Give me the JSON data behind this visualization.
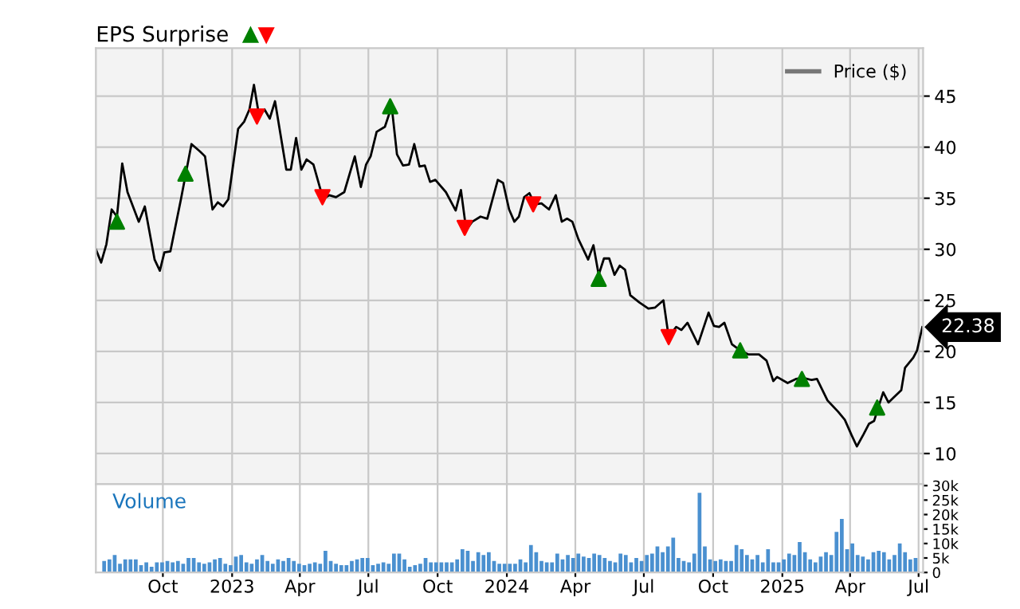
{
  "chart_data": [
    {
      "type": "line",
      "title": "EPS Surprise",
      "legend": "top right",
      "grid": true,
      "tick_labels": "y",
      "xlim": [
        "2022-07-04",
        "2025-07-07"
      ],
      "xticks": [
        {
          "value": "2022-10-01",
          "label": null
        },
        {
          "value": "2023-01-01",
          "label": null
        },
        {
          "value": "2023-04-01",
          "label": null
        },
        {
          "value": "2023-07-01",
          "label": null
        },
        {
          "value": "2023-10-01",
          "label": null
        },
        {
          "value": "2024-01-01",
          "label": null
        },
        {
          "value": "2024-04-01",
          "label": null
        },
        {
          "value": "2024-07-01",
          "label": null
        },
        {
          "value": "2024-10-01",
          "label": null
        },
        {
          "value": "2025-01-01",
          "label": null
        },
        {
          "value": "2025-04-01",
          "label": null
        },
        {
          "value": "2025-07-01",
          "label": null
        }
      ],
      "ylim": [
        7,
        49.7
      ],
      "yticks": [
        10,
        15,
        20,
        25,
        30,
        35,
        40,
        45
      ],
      "annotations": [
        {
          "text": "22.38",
          "x": "2025-07-06",
          "y": 22.38
        }
      ],
      "series": [
        {
          "name": "Price ($)",
          "type": "line",
          "color": "#000000",
          "marker": "none",
          "x": [
            "2022-07-04",
            "2022-07-11",
            "2022-07-18",
            "2022-07-25",
            "2022-08-01",
            "2022-08-08",
            "2022-08-15",
            "2022-08-30",
            "2022-09-07",
            "2022-09-20",
            "2022-09-27",
            "2022-10-03",
            "2022-10-11",
            "2022-10-25",
            "2022-11-08",
            "2022-11-19",
            "2022-11-26",
            "2022-12-06",
            "2022-12-13",
            "2022-12-20",
            "2022-12-27",
            "2023-01-09",
            "2023-01-17",
            "2023-01-24",
            "2023-01-30",
            "2023-02-06",
            "2023-02-13",
            "2023-02-20",
            "2023-02-27",
            "2023-03-14",
            "2023-03-20",
            "2023-03-27",
            "2023-04-03",
            "2023-04-10",
            "2023-04-19",
            "2023-05-02",
            "2023-05-10",
            "2023-05-19",
            "2023-05-30",
            "2023-06-13",
            "2023-06-21",
            "2023-06-28",
            "2023-07-04",
            "2023-07-12",
            "2023-07-23",
            "2023-08-01",
            "2023-08-08",
            "2023-08-16",
            "2023-08-24",
            "2023-08-31",
            "2023-09-07",
            "2023-09-14",
            "2023-09-21",
            "2023-09-28",
            "2023-10-12",
            "2023-10-25",
            "2023-11-01",
            "2023-11-08",
            "2023-11-16",
            "2023-11-27",
            "2023-12-06",
            "2023-12-20",
            "2023-12-27",
            "2024-01-04",
            "2024-01-11",
            "2024-01-17",
            "2024-01-24",
            "2024-01-31",
            "2024-02-07",
            "2024-02-16",
            "2024-02-26",
            "2024-03-06",
            "2024-03-14",
            "2024-03-21",
            "2024-03-28",
            "2024-04-05",
            "2024-04-18",
            "2024-04-25",
            "2024-05-02",
            "2024-05-09",
            "2024-05-16",
            "2024-05-23",
            "2024-05-30",
            "2024-06-06",
            "2024-06-13",
            "2024-06-25",
            "2024-07-07",
            "2024-07-16",
            "2024-07-27",
            "2024-08-03",
            "2024-08-13",
            "2024-08-20",
            "2024-08-28",
            "2024-09-11",
            "2024-09-25",
            "2024-10-02",
            "2024-10-09",
            "2024-10-16",
            "2024-10-26",
            "2024-11-06",
            "2024-11-17",
            "2024-12-01",
            "2024-12-11",
            "2024-12-20",
            "2024-12-25",
            "2025-01-08",
            "2025-01-19",
            "2025-01-29",
            "2025-02-09",
            "2025-02-16",
            "2025-03-02",
            "2025-03-16",
            "2025-03-25",
            "2025-04-03",
            "2025-04-10",
            "2025-04-19",
            "2025-04-26",
            "2025-05-03",
            "2025-05-08",
            "2025-05-15",
            "2025-05-22",
            "2025-05-29",
            "2025-06-08",
            "2025-06-13",
            "2025-06-24",
            "2025-06-29",
            "2025-07-06"
          ],
          "values": [
            30.0,
            28.7,
            30.5,
            33.9,
            33.2,
            38.4,
            35.6,
            32.7,
            34.2,
            29.0,
            27.9,
            29.7,
            29.8,
            34.9,
            40.3,
            39.6,
            39.1,
            33.9,
            34.6,
            34.2,
            34.9,
            41.8,
            42.5,
            43.7,
            46.1,
            43.0,
            43.7,
            42.8,
            44.5,
            37.8,
            37.8,
            40.9,
            37.8,
            38.8,
            38.3,
            34.9,
            35.3,
            35.1,
            35.6,
            39.1,
            36.1,
            38.3,
            39.1,
            41.5,
            42.0,
            44.0,
            39.3,
            38.2,
            38.3,
            40.3,
            38.1,
            38.2,
            36.6,
            36.8,
            35.6,
            33.8,
            35.8,
            31.9,
            32.7,
            33.2,
            33.0,
            36.8,
            36.5,
            33.9,
            32.7,
            33.2,
            35.1,
            35.5,
            34.4,
            34.5,
            33.9,
            35.3,
            32.7,
            33.0,
            32.7,
            31.0,
            29.0,
            30.4,
            27.5,
            29.1,
            29.1,
            27.5,
            28.4,
            28.0,
            25.5,
            24.8,
            24.2,
            24.3,
            25.0,
            21.4,
            22.4,
            22.1,
            22.8,
            20.7,
            23.8,
            22.5,
            22.4,
            22.8,
            20.7,
            20.1,
            19.7,
            19.7,
            19.1,
            17.1,
            17.5,
            16.9,
            17.3,
            17.4,
            17.2,
            17.3,
            15.2,
            14.1,
            13.3,
            11.8,
            10.7,
            11.9,
            12.9,
            13.2,
            14.4,
            16.0,
            15.0,
            15.5,
            16.2,
            18.4,
            19.4,
            20.1,
            22.38
          ]
        },
        {
          "type": "scatter",
          "color": "#008000",
          "marker": "triangle",
          "x": [
            "2022-08-01",
            "2022-10-31",
            "2023-07-30",
            "2024-05-02",
            "2024-11-06",
            "2025-01-27",
            "2025-05-07"
          ],
          "values": [
            32.7,
            37.4,
            44.0,
            27.1,
            20.1,
            17.3,
            14.5
          ]
        },
        {
          "type": "scatter",
          "color": "#ff0000",
          "marker": "triangle-down",
          "x": [
            "2023-02-03",
            "2023-05-01",
            "2023-11-06",
            "2024-02-05",
            "2024-08-03"
          ],
          "values": [
            43.0,
            35.1,
            32.1,
            34.4,
            21.4
          ]
        }
      ]
    },
    {
      "type": "bar",
      "title": "Volume",
      "grid": "x",
      "color": "#4a90d0",
      "xlim": [
        "2022-07-04",
        "2025-07-07"
      ],
      "xticks": [
        {
          "value": "2022-10-01",
          "label": "Oct"
        },
        {
          "value": "2023-01-01",
          "label": "2023"
        },
        {
          "value": "2023-04-01",
          "label": "Apr"
        },
        {
          "value": "2023-07-01",
          "label": "Jul"
        },
        {
          "value": "2023-10-01",
          "label": "Oct"
        },
        {
          "value": "2024-01-01",
          "label": "2024"
        },
        {
          "value": "2024-04-01",
          "label": "Apr"
        },
        {
          "value": "2024-07-01",
          "label": "Jul"
        },
        {
          "value": "2024-10-01",
          "label": "Oct"
        },
        {
          "value": "2025-01-01",
          "label": "2025"
        },
        {
          "value": "2025-04-01",
          "label": "Apr"
        },
        {
          "value": "2025-07-01",
          "label": "Jul"
        }
      ],
      "ylim": [
        0,
        30.5
      ],
      "yticks": [
        0,
        {
          "value": 5,
          "label": "5k"
        },
        {
          "value": 10,
          "label": "10k"
        },
        {
          "value": 15,
          "label": "15k"
        },
        {
          "value": 20,
          "label": "20k"
        },
        {
          "value": 25,
          "label": "25k"
        },
        {
          "value": 30,
          "label": "30k"
        }
      ],
      "x": [
        "2022-07-15",
        "2022-07-22",
        "2022-07-29",
        "2022-08-05",
        "2022-08-12",
        "2022-08-19",
        "2022-08-26",
        "2022-09-02",
        "2022-09-09",
        "2022-09-16",
        "2022-09-23",
        "2022-09-30",
        "2022-10-07",
        "2022-10-14",
        "2022-10-21",
        "2022-10-28",
        "2022-11-04",
        "2022-11-11",
        "2022-11-18",
        "2022-11-25",
        "2022-12-02",
        "2022-12-09",
        "2022-12-16",
        "2022-12-23",
        "2022-12-30",
        "2023-01-06",
        "2023-01-13",
        "2023-01-20",
        "2023-01-27",
        "2023-02-03",
        "2023-02-10",
        "2023-02-17",
        "2023-02-24",
        "2023-03-03",
        "2023-03-10",
        "2023-03-17",
        "2023-03-24",
        "2023-03-31",
        "2023-04-07",
        "2023-04-14",
        "2023-04-21",
        "2023-04-28",
        "2023-05-05",
        "2023-05-12",
        "2023-05-19",
        "2023-05-26",
        "2023-06-02",
        "2023-06-09",
        "2023-06-16",
        "2023-06-23",
        "2023-06-30",
        "2023-07-07",
        "2023-07-14",
        "2023-07-21",
        "2023-07-28",
        "2023-08-04",
        "2023-08-11",
        "2023-08-18",
        "2023-08-25",
        "2023-09-01",
        "2023-09-08",
        "2023-09-15",
        "2023-09-22",
        "2023-09-29",
        "2023-10-06",
        "2023-10-13",
        "2023-10-20",
        "2023-10-27",
        "2023-11-03",
        "2023-11-10",
        "2023-11-17",
        "2023-11-24",
        "2023-12-01",
        "2023-12-08",
        "2023-12-15",
        "2023-12-22",
        "2023-12-29",
        "2024-01-05",
        "2024-01-12",
        "2024-01-19",
        "2024-01-26",
        "2024-02-02",
        "2024-02-09",
        "2024-02-16",
        "2024-02-23",
        "2024-03-01",
        "2024-03-08",
        "2024-03-15",
        "2024-03-22",
        "2024-03-29",
        "2024-04-05",
        "2024-04-12",
        "2024-04-19",
        "2024-04-26",
        "2024-05-03",
        "2024-05-10",
        "2024-05-17",
        "2024-05-24",
        "2024-05-31",
        "2024-06-07",
        "2024-06-14",
        "2024-06-21",
        "2024-06-28",
        "2024-07-05",
        "2024-07-12",
        "2024-07-19",
        "2024-07-26",
        "2024-08-02",
        "2024-08-09",
        "2024-08-16",
        "2024-08-23",
        "2024-08-30",
        "2024-09-06",
        "2024-09-13",
        "2024-09-20",
        "2024-09-27",
        "2024-10-04",
        "2024-10-11",
        "2024-10-18",
        "2024-10-25",
        "2024-11-01",
        "2024-11-08",
        "2024-11-15",
        "2024-11-22",
        "2024-11-29",
        "2024-12-06",
        "2024-12-13",
        "2024-12-20",
        "2024-12-27",
        "2025-01-03",
        "2025-01-10",
        "2025-01-17",
        "2025-01-24",
        "2025-01-31",
        "2025-02-07",
        "2025-02-14",
        "2025-02-21",
        "2025-02-28",
        "2025-03-07",
        "2025-03-14",
        "2025-03-21",
        "2025-03-28",
        "2025-04-04",
        "2025-04-11",
        "2025-04-18",
        "2025-04-25",
        "2025-05-02",
        "2025-05-09",
        "2025-05-16",
        "2025-05-23",
        "2025-05-30",
        "2025-06-06",
        "2025-06-13",
        "2025-06-20",
        "2025-06-27"
      ],
      "values": [
        4,
        4.5,
        6,
        3,
        4.5,
        4.5,
        4.5,
        2.5,
        3.5,
        2,
        3.5,
        3.5,
        4,
        3.5,
        4,
        3,
        5,
        5,
        3.5,
        3,
        3.5,
        4.5,
        5,
        3,
        2.5,
        5.5,
        6,
        3.5,
        3,
        4.5,
        6,
        4,
        3,
        4.5,
        4,
        5,
        4,
        3,
        2.5,
        3,
        3.5,
        3,
        7.5,
        4,
        3,
        2.5,
        2.5,
        4,
        4.5,
        5,
        5,
        2.5,
        3,
        3.5,
        3,
        6.5,
        6.5,
        4.5,
        2,
        2.5,
        3,
        5,
        3.5,
        3.5,
        3.5,
        3.5,
        3.5,
        4.5,
        8,
        7.5,
        4,
        7,
        6,
        7,
        4,
        3,
        3,
        3,
        3,
        4.5,
        3.5,
        9.5,
        7,
        4,
        3.5,
        3.5,
        6.5,
        4.5,
        6,
        5,
        6.5,
        5.5,
        5,
        6.5,
        6,
        5,
        4,
        3.5,
        6.5,
        6,
        3.5,
        5,
        4,
        6,
        6.5,
        9,
        7,
        9,
        12,
        5,
        4,
        3.5,
        6.5,
        27.5,
        9,
        4.5,
        4,
        4.5,
        4,
        4,
        9.5,
        8,
        6,
        4.5,
        6,
        3.5,
        8,
        3.5,
        3.5,
        4.5,
        6.5,
        6,
        10.5,
        7,
        4.5,
        3.5,
        5.5,
        7,
        6,
        14,
        18.5,
        8,
        10,
        6,
        5.5,
        4.5,
        7,
        7.5,
        7,
        4.5,
        6,
        10,
        7,
        4.5,
        5
      ]
    }
  ]
}
